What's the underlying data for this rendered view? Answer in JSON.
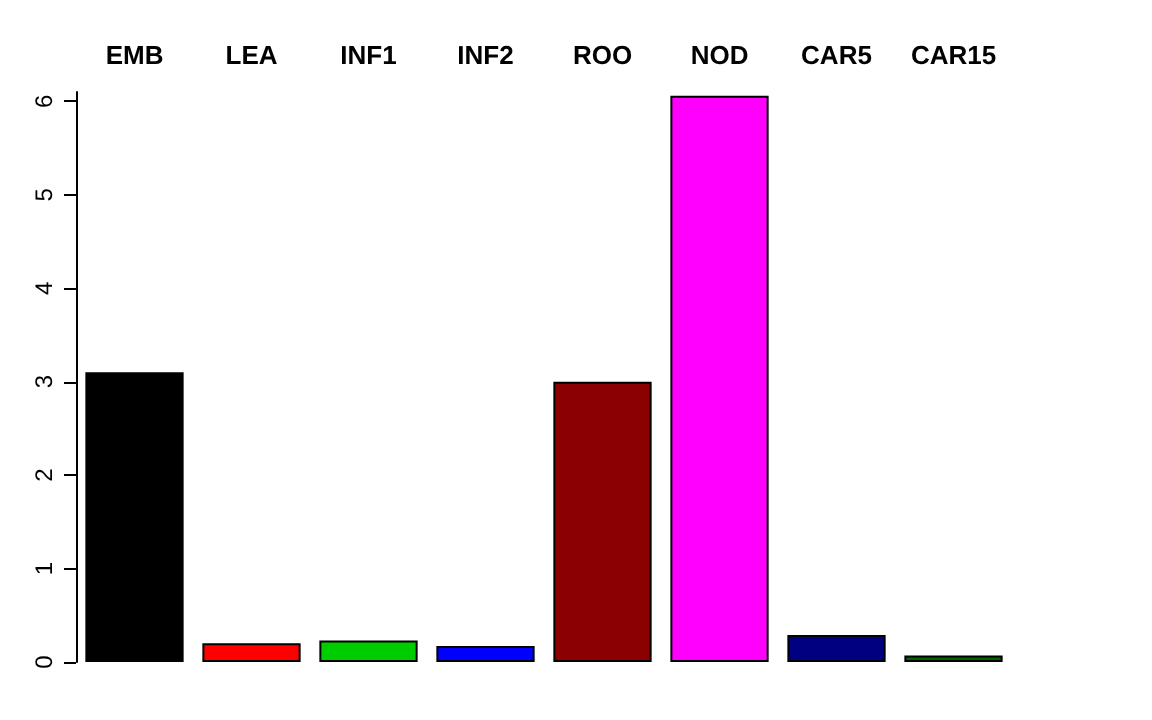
{
  "chart_data": {
    "type": "bar",
    "categories": [
      "EMB",
      "LEA",
      "INF1",
      "INF2",
      "ROO",
      "NOD",
      "CAR5",
      "CAR15"
    ],
    "values": [
      3.1,
      0.2,
      0.23,
      0.17,
      3.0,
      6.06,
      0.29,
      0.07
    ],
    "colors": [
      "#000000",
      "#ff0000",
      "#00cd00",
      "#0000ff",
      "#8b0000",
      "#ff00ff",
      "#000080",
      "#006400"
    ],
    "ylim": [
      0,
      6.1
    ],
    "yticks": [
      0,
      1,
      2,
      3,
      4,
      5,
      6
    ]
  }
}
